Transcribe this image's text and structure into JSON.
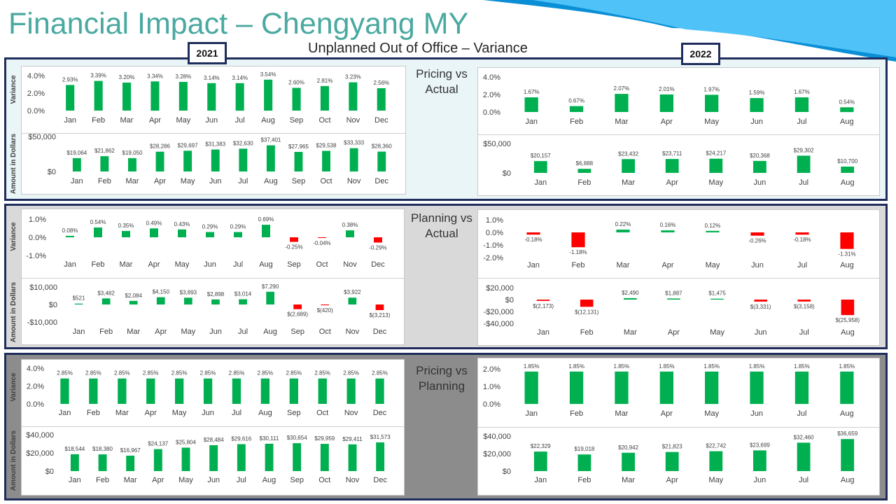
{
  "title": "Financial Impact – Chengyang MY",
  "subtitle": "Unplanned Out of Office – Variance",
  "year_badges": {
    "left": "2021",
    "right": "2022"
  },
  "colors": {
    "positive": "#00b050",
    "negative": "#ff0000",
    "frame": "#1f2d5c",
    "title": "#4aa9a0"
  },
  "sections": [
    {
      "label": "Pricing vs\nActual",
      "background": "#eaf5f7"
    },
    {
      "label": "Planning vs\nActual",
      "background": "#d9d9d9"
    },
    {
      "label": "Pricing vs\nPlanning",
      "background": "#8c8c8c"
    }
  ],
  "chart_data": [
    {
      "id": "c0",
      "type": "bar",
      "ylabel": "Variance",
      "categories": [
        "Jan",
        "Feb",
        "Mar",
        "Apr",
        "May",
        "Jun",
        "Jul",
        "Aug",
        "Sep",
        "Oct",
        "Nov",
        "Dec"
      ],
      "values": [
        2.93,
        3.39,
        3.2,
        3.34,
        3.28,
        3.14,
        3.14,
        3.54,
        2.6,
        2.81,
        3.23,
        2.56
      ],
      "labels": [
        "2.93%",
        "3.39%",
        "3.20%",
        "3.34%",
        "3.28%",
        "3.14%",
        "3.14%",
        "3.54%",
        "2.60%",
        "2.81%",
        "3.23%",
        "2.56%"
      ],
      "ticks": [
        0,
        2,
        4
      ],
      "tick_labels": [
        "0.0%",
        "2.0%",
        "4.0%"
      ],
      "ylim": [
        0,
        4
      ]
    },
    {
      "id": "c1",
      "type": "bar",
      "ylabel": "Amount in Dollars",
      "categories": [
        "Jan",
        "Feb",
        "Mar",
        "Apr",
        "May",
        "Jun",
        "Jul",
        "Aug",
        "Sep",
        "Oct",
        "Nov",
        "Dec"
      ],
      "values": [
        19064,
        21862,
        19050,
        28286,
        29697,
        31383,
        32630,
        37401,
        27965,
        29538,
        33333,
        28360
      ],
      "labels": [
        "$19,064",
        "$21,862",
        "$19,050",
        "$28,286",
        "$29,697",
        "$31,383",
        "$32,630",
        "$37,401",
        "$27,965",
        "$29,538",
        "$33,333",
        "$28,360"
      ],
      "ticks": [
        0,
        50000
      ],
      "tick_labels": [
        "$0",
        "$50,000"
      ],
      "ylim": [
        0,
        50000
      ]
    },
    {
      "id": "c2",
      "type": "bar",
      "ylabel": "",
      "categories": [
        "Jan",
        "Feb",
        "Mar",
        "Apr",
        "May",
        "Jun",
        "Jul",
        "Aug"
      ],
      "values": [
        1.67,
        0.67,
        2.07,
        2.01,
        1.97,
        1.59,
        1.67,
        0.54
      ],
      "labels": [
        "1.67%",
        "0.67%",
        "2.07%",
        "2.01%",
        "1.97%",
        "1.59%",
        "1.67%",
        "0.54%"
      ],
      "ticks": [
        0,
        2,
        4
      ],
      "tick_labels": [
        "0.0%",
        "2.0%",
        "4.0%"
      ],
      "ylim": [
        0,
        4
      ]
    },
    {
      "id": "c3",
      "type": "bar",
      "ylabel": "",
      "categories": [
        "Jan",
        "Feb",
        "Mar",
        "Apr",
        "May",
        "Jun",
        "Jul",
        "Aug"
      ],
      "values": [
        20157,
        6888,
        23432,
        23711,
        24217,
        20368,
        29302,
        10700
      ],
      "labels": [
        "$20,157",
        "$6,888",
        "$23,432",
        "$23,711",
        "$24,217",
        "$20,368",
        "$29,302",
        "$10,700"
      ],
      "ticks": [
        0,
        50000
      ],
      "tick_labels": [
        "$0",
        "$50,000"
      ],
      "ylim": [
        0,
        50000
      ]
    },
    {
      "id": "c4",
      "type": "bar",
      "ylabel": "Variance",
      "categories": [
        "Jan",
        "Feb",
        "Mar",
        "Apr",
        "May",
        "Jun",
        "Jul",
        "Aug",
        "Sep",
        "Oct",
        "Nov",
        "Dec"
      ],
      "values": [
        0.08,
        0.54,
        0.35,
        0.49,
        0.43,
        0.29,
        0.29,
        0.69,
        -0.25,
        -0.04,
        0.38,
        -0.29
      ],
      "labels": [
        "0.08%",
        "0.54%",
        "0.35%",
        "0.49%",
        "0.43%",
        "0.29%",
        "0.29%",
        "0.69%",
        "-0.25%",
        "-0.04%",
        "0.38%",
        "-0.29%"
      ],
      "ticks": [
        -1,
        0,
        1
      ],
      "tick_labels": [
        "-1.0%",
        "0.0%",
        "1.0%"
      ],
      "ylim": [
        -1,
        1
      ]
    },
    {
      "id": "c5",
      "type": "bar",
      "ylabel": "Amount in Dollars",
      "categories": [
        "Jan",
        "Feb",
        "Mar",
        "Apr",
        "May",
        "Jun",
        "Jul",
        "Aug",
        "Sep",
        "Oct",
        "Nov",
        "Dec"
      ],
      "values": [
        521,
        3482,
        2084,
        4150,
        3893,
        2898,
        3014,
        7290,
        -2689,
        -420,
        3922,
        -3213
      ],
      "labels": [
        "$521",
        "$3,482",
        "$2,084",
        "$4,150",
        "$3,893",
        "$2,898",
        "$3,014",
        "$7,290",
        "$(2,689)",
        "$(420)",
        "$3,922",
        "$(3,213)"
      ],
      "ticks": [
        -10000,
        0,
        10000
      ],
      "tick_labels": [
        "-$10,000",
        "$0",
        "$10,000"
      ],
      "ylim": [
        -10000,
        10000
      ]
    },
    {
      "id": "c6",
      "type": "bar",
      "ylabel": "",
      "categories": [
        "Jan",
        "Feb",
        "Mar",
        "Apr",
        "May",
        "Jun",
        "Jul",
        "Aug"
      ],
      "values": [
        -0.18,
        -1.18,
        0.22,
        0.16,
        0.12,
        -0.26,
        -0.18,
        -1.31
      ],
      "labels": [
        "-0.18%",
        "-1.18%",
        "0.22%",
        "0.16%",
        "0.12%",
        "-0.26%",
        "-0.18%",
        "-1.31%"
      ],
      "ticks": [
        -2,
        -1,
        0,
        1
      ],
      "tick_labels": [
        "-2.0%",
        "-1.0%",
        "0.0%",
        "1.0%"
      ],
      "ylim": [
        -2,
        1
      ]
    },
    {
      "id": "c7",
      "type": "bar",
      "ylabel": "",
      "categories": [
        "Jan",
        "Feb",
        "Mar",
        "Apr",
        "May",
        "Jun",
        "Jul",
        "Aug"
      ],
      "values": [
        -2173,
        -12131,
        2490,
        1887,
        1475,
        -3331,
        -3158,
        -25958
      ],
      "labels": [
        "$(2,173)",
        "$(12,131)",
        "$2,490",
        "$1,887",
        "$1,475",
        "$(3,331)",
        "$(3,158)",
        "$(25,958)"
      ],
      "ticks": [
        -40000,
        -20000,
        0,
        20000
      ],
      "tick_labels": [
        "-$40,000",
        "-$20,000",
        "$0",
        "$20,000"
      ],
      "ylim": [
        -40000,
        20000
      ]
    },
    {
      "id": "c8",
      "type": "bar",
      "ylabel": "Variance",
      "categories": [
        "Jan",
        "Feb",
        "Mar",
        "Apr",
        "May",
        "Jun",
        "Jul",
        "Aug",
        "Sep",
        "Oct",
        "Nov",
        "Dec"
      ],
      "values": [
        2.85,
        2.85,
        2.85,
        2.85,
        2.85,
        2.85,
        2.85,
        2.85,
        2.85,
        2.85,
        2.85,
        2.85
      ],
      "labels": [
        "2.85%",
        "2.85%",
        "2.85%",
        "2.85%",
        "2.85%",
        "2.85%",
        "2.85%",
        "2.85%",
        "2.85%",
        "2.85%",
        "2.85%",
        "2.85%"
      ],
      "ticks": [
        0,
        2,
        4
      ],
      "tick_labels": [
        "0.0%",
        "2.0%",
        "4.0%"
      ],
      "ylim": [
        0,
        4
      ]
    },
    {
      "id": "c9",
      "type": "bar",
      "ylabel": "Amount in Dollars",
      "categories": [
        "Jan",
        "Feb",
        "Mar",
        "Apr",
        "May",
        "Jun",
        "Jul",
        "Aug",
        "Sep",
        "Oct",
        "Nov",
        "Dec"
      ],
      "values": [
        18544,
        18380,
        16967,
        24137,
        25804,
        28484,
        29616,
        30111,
        30654,
        29959,
        29411,
        31573
      ],
      "labels": [
        "$18,544",
        "$18,380",
        "$16,967",
        "$24,137",
        "$25,804",
        "$28,484",
        "$29,616",
        "$30,111",
        "$30,654",
        "$29,959",
        "$29,411",
        "$31,573"
      ],
      "ticks": [
        0,
        20000,
        40000
      ],
      "tick_labels": [
        "$0",
        "$20,000",
        "$40,000"
      ],
      "ylim": [
        0,
        40000
      ]
    },
    {
      "id": "c10",
      "type": "bar",
      "ylabel": "",
      "categories": [
        "Jan",
        "Feb",
        "Mar",
        "Apr",
        "May",
        "Jun",
        "Jul",
        "Aug"
      ],
      "values": [
        1.85,
        1.85,
        1.85,
        1.85,
        1.85,
        1.85,
        1.85,
        1.85
      ],
      "labels": [
        "1.85%",
        "1.85%",
        "1.85%",
        "1.85%",
        "1.85%",
        "1.85%",
        "1.85%",
        "1.85%"
      ],
      "ticks": [
        0,
        1,
        2
      ],
      "tick_labels": [
        "0.0%",
        "1.0%",
        "2.0%"
      ],
      "ylim": [
        0,
        2
      ]
    },
    {
      "id": "c11",
      "type": "bar",
      "ylabel": "",
      "categories": [
        "Jan",
        "Feb",
        "Mar",
        "Apr",
        "May",
        "Jun",
        "Jul",
        "Aug"
      ],
      "values": [
        22329,
        19018,
        20942,
        21823,
        22742,
        23699,
        32460,
        36659
      ],
      "labels": [
        "$22,329",
        "$19,018",
        "$20,942",
        "$21,823",
        "$22,742",
        "$23,699",
        "$32,460",
        "$36,659"
      ],
      "ticks": [
        0,
        20000,
        40000
      ],
      "tick_labels": [
        "$0",
        "$20,000",
        "$40,000"
      ],
      "ylim": [
        0,
        40000
      ]
    }
  ]
}
